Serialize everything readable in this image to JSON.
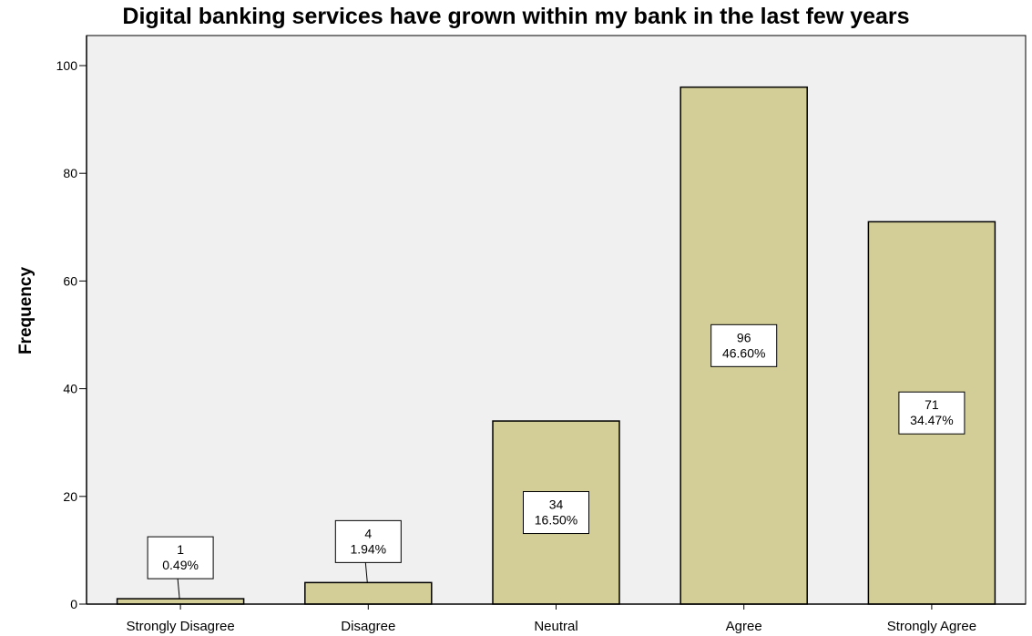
{
  "chart_data": {
    "type": "bar",
    "title": "Digital banking services have grown within my bank in the last few years",
    "ylabel": "Frequency",
    "xlabel": "",
    "categories": [
      "Strongly Disagree",
      "Disagree",
      "Neutral",
      "Agree",
      "Strongly Agree"
    ],
    "values": [
      1,
      4,
      34,
      96,
      71
    ],
    "percent_labels": [
      "0.49%",
      "1.94%",
      "16.50%",
      "46.60%",
      "34.47%"
    ],
    "ylim": [
      0,
      100
    ],
    "yticks": [
      0,
      20,
      40,
      60,
      80,
      100
    ],
    "grid": false,
    "legend": "none",
    "colors": {
      "plot_background": "#f0f0f0",
      "bar_fill": "#d3ce97",
      "bar_stroke": "#000000"
    }
  }
}
